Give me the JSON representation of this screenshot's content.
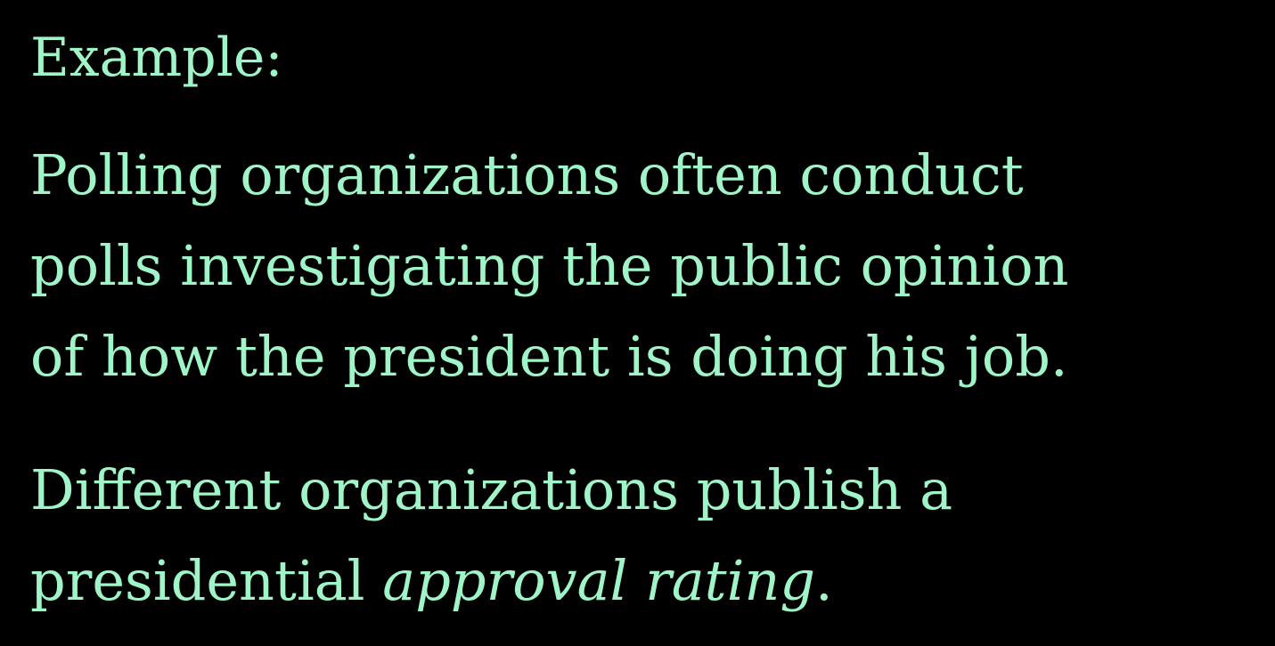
{
  "colors": {
    "background": "#000000",
    "text": "#9ff5c8"
  },
  "heading": "Example:",
  "paragraph1": {
    "lines": [
      "Polling organizations often conduct",
      "polls investigating the public opinion",
      "of how the president is doing his job."
    ]
  },
  "paragraph2": {
    "line1": "Different organizations publish a",
    "line2_prefix": "presidential ",
    "line2_emphasis": "approval rating",
    "line2_suffix": "."
  }
}
